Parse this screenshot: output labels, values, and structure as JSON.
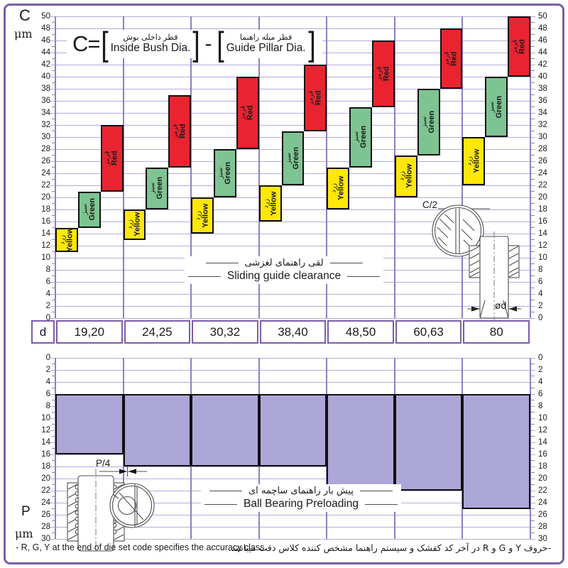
{
  "page": {
    "border_color": "#7b5ea7",
    "footer_en": "- R, G, Y at the end of die set code specifies the accuracy class.",
    "footer_fa": "-حروف Y و G و R در آخر کد کفشک و سیستم راهنما مشخص کننده کلاس دقت میباشد."
  },
  "formula": {
    "lhs": "C=",
    "open": "[",
    "close": "]",
    "minus": "-",
    "term1_fa": "قطر داخلی بوش",
    "term1_en": "Inside Bush Dia.",
    "term2_fa": "قطر میله راهنما",
    "term2_en": "Guide Pillar Dia."
  },
  "diameter_table": {
    "header": "d",
    "values": [
      "19,20",
      "24,25",
      "30,32",
      "38,40",
      "48,50",
      "60,63",
      "80"
    ]
  },
  "colors": {
    "grid_h": "#b6abdd",
    "grid_v": "#8f7ec4",
    "bar_border": "#111111",
    "table_border": "#7b5ea7",
    "yellow": "#ffe805",
    "green": "#7ec492",
    "red": "#e92430",
    "purple": "#ada7d7"
  },
  "chart_data": [
    {
      "type": "bar",
      "subtype": "stepped-range-columns",
      "title_fa": "لقی راهنمای لغزشی",
      "title_en": "Sliding guide clearance",
      "ylabel": "C",
      "yunit": "μm",
      "ylim": [
        0,
        50
      ],
      "ytick_step": 2,
      "grid": true,
      "categories": [
        "19,20",
        "24,25",
        "30,32",
        "38,40",
        "48,50",
        "60,63",
        "80"
      ],
      "series": [
        {
          "name": "Yellow",
          "name_fa": "زرد",
          "color": "#ffe805",
          "ranges": [
            [
              11,
              15
            ],
            [
              13,
              18
            ],
            [
              14,
              20
            ],
            [
              16,
              22
            ],
            [
              18,
              25
            ],
            [
              20,
              27
            ],
            [
              22,
              30
            ]
          ]
        },
        {
          "name": "Green",
          "name_fa": "سبز",
          "color": "#7ec492",
          "ranges": [
            [
              15,
              21
            ],
            [
              18,
              25
            ],
            [
              20,
              28
            ],
            [
              22,
              31
            ],
            [
              25,
              35
            ],
            [
              27,
              38
            ],
            [
              30,
              40
            ]
          ]
        },
        {
          "name": "Red",
          "name_fa": "قرمز",
          "color": "#e92430",
          "ranges": [
            [
              21,
              32
            ],
            [
              25,
              37
            ],
            [
              28,
              40
            ],
            [
              31,
              42
            ],
            [
              35,
              46
            ],
            [
              38,
              48
            ],
            [
              40,
              50
            ]
          ]
        }
      ],
      "annotation_c2": "C/2",
      "annotation_od": "ød"
    },
    {
      "type": "bar",
      "subtype": "downward-range-columns",
      "title_fa": "پیش بار راهنمای ساچمه ای",
      "title_en": "Ball Bearing Preloading",
      "ylabel": "P",
      "yunit": "μm",
      "ylim": [
        0,
        30
      ],
      "ytick_step": 2,
      "grid": true,
      "categories": [
        "19,20",
        "24,25",
        "30,32",
        "38,40",
        "48,50",
        "60,63",
        "80"
      ],
      "series": [
        {
          "name": "Preload",
          "color": "#ada7d7",
          "ranges": [
            [
              6,
              16
            ],
            [
              6,
              18
            ],
            [
              6,
              18
            ],
            [
              6,
              18
            ],
            [
              6,
              22
            ],
            [
              6,
              22
            ],
            [
              6,
              25
            ]
          ]
        }
      ],
      "annotation_p4": "P/4"
    }
  ]
}
